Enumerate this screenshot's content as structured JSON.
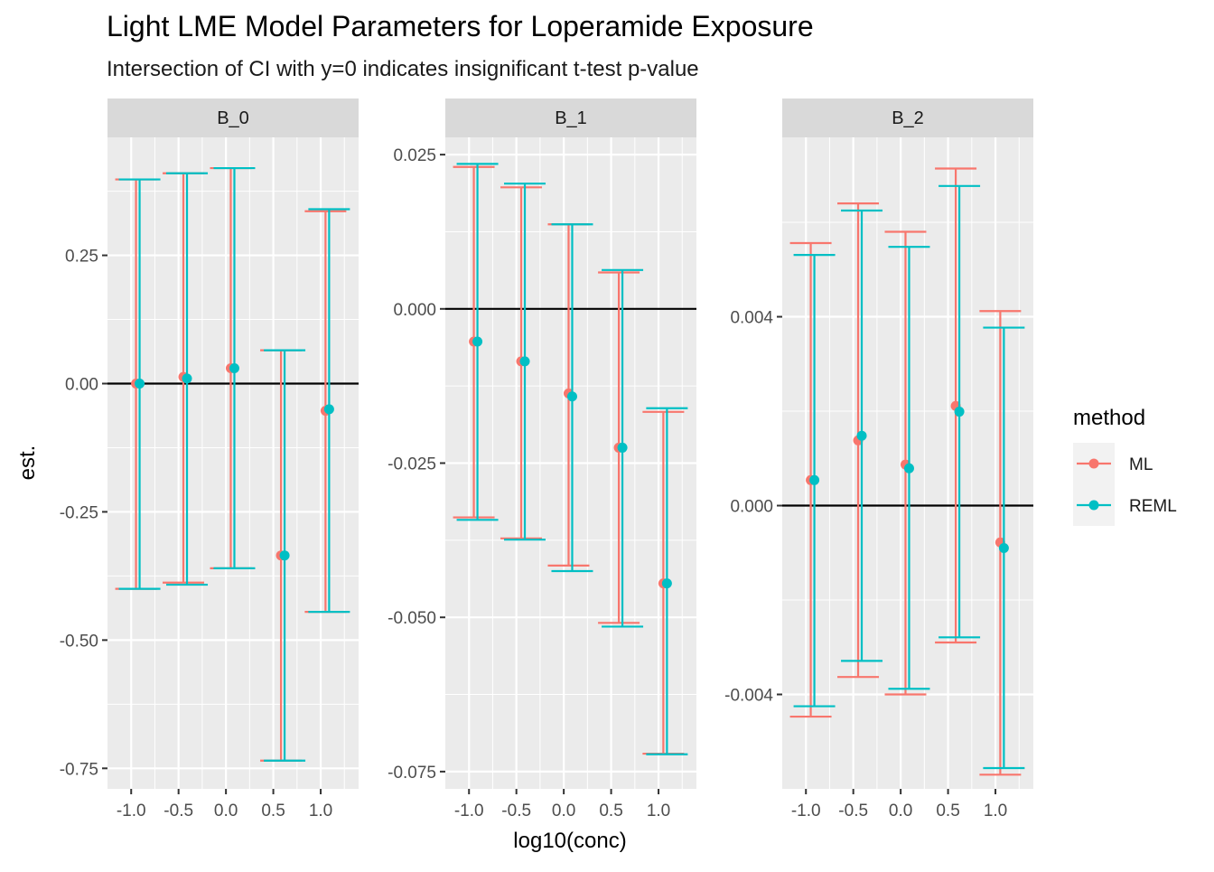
{
  "chart_data": {
    "type": "errorbar",
    "title": "Light LME Model Parameters for Loperamide Exposure",
    "subtitle": "Intersection of CI with y=0 indicates insignificant t-test p-value",
    "xlabel": "log10(conc)",
    "ylabel": "est.",
    "legend": {
      "title": "method",
      "position": "right",
      "entries": [
        {
          "label": "ML",
          "color": "#F8766D"
        },
        {
          "label": "REML",
          "color": "#00BFC4"
        }
      ]
    },
    "x_ticks": [
      "-1.0",
      "-0.5",
      "0.0",
      "0.5",
      "1.0"
    ],
    "xlim": [
      -1.25,
      1.4
    ],
    "x_values": [
      -0.93,
      -0.43,
      0.07,
      0.6,
      1.07
    ],
    "reference_line_y": 0,
    "grid": true,
    "panels": [
      {
        "name": "B_0",
        "ylim": [
          -0.79,
          0.48
        ],
        "y_ticks": [
          {
            "value": 0.25,
            "label": "0.25"
          },
          {
            "value": 0.0,
            "label": "0.00"
          },
          {
            "value": -0.25,
            "label": "-0.25"
          },
          {
            "value": -0.5,
            "label": "-0.50"
          },
          {
            "value": -0.75,
            "label": "-0.75"
          }
        ],
        "series": [
          {
            "name": "ML",
            "estimate": [
              0.0,
              0.013,
              0.03,
              -0.335,
              -0.053
            ],
            "lower": [
              -0.4,
              -0.388,
              -0.36,
              -0.735,
              -0.445
            ],
            "upper": [
              0.398,
              0.41,
              0.42,
              0.065,
              0.336
            ]
          },
          {
            "name": "REML",
            "estimate": [
              0.0,
              0.01,
              0.03,
              -0.335,
              -0.05
            ],
            "lower": [
              -0.4,
              -0.392,
              -0.36,
              -0.735,
              -0.445
            ],
            "upper": [
              0.398,
              0.41,
              0.42,
              0.065,
              0.34
            ]
          }
        ]
      },
      {
        "name": "B_1",
        "ylim": [
          -0.0778,
          0.0278
        ],
        "y_ticks": [
          {
            "value": 0.025,
            "label": "0.025"
          },
          {
            "value": 0.0,
            "label": "0.000"
          },
          {
            "value": -0.025,
            "label": "-0.025"
          },
          {
            "value": -0.05,
            "label": "-0.050"
          },
          {
            "value": -0.075,
            "label": "-0.075"
          }
        ],
        "series": [
          {
            "name": "ML",
            "estimate": [
              -0.0053,
              -0.0085,
              -0.0137,
              -0.0225,
              -0.0445
            ],
            "lower": [
              -0.0338,
              -0.0372,
              -0.0416,
              -0.0509,
              -0.0721
            ],
            "upper": [
              0.023,
              0.0197,
              0.0137,
              0.0059,
              -0.0167
            ]
          },
          {
            "name": "REML",
            "estimate": [
              -0.0053,
              -0.0085,
              -0.0142,
              -0.0225,
              -0.0445
            ],
            "lower": [
              -0.0342,
              -0.0374,
              -0.0425,
              -0.0515,
              -0.0722
            ],
            "upper": [
              0.0235,
              0.0203,
              0.0137,
              0.0063,
              -0.0161
            ]
          }
        ]
      },
      {
        "name": "B_2",
        "ylim": [
          -0.006,
          0.0078
        ],
        "y_ticks": [
          {
            "value": 0.004,
            "label": "0.004"
          },
          {
            "value": 0.0,
            "label": "0.000"
          },
          {
            "value": -0.004,
            "label": "-0.004"
          }
        ],
        "series": [
          {
            "name": "ML",
            "estimate": [
              0.00054,
              0.00138,
              0.00087,
              0.00211,
              -0.00078
            ],
            "lower": [
              -0.00447,
              -0.00363,
              -0.004,
              -0.0029,
              -0.0057
            ],
            "upper": [
              0.00556,
              0.0064,
              0.0058,
              0.00714,
              0.00412
            ]
          },
          {
            "name": "REML",
            "estimate": [
              0.00054,
              0.00148,
              0.00079,
              0.00199,
              -0.0009
            ],
            "lower": [
              -0.00425,
              -0.00329,
              -0.00388,
              -0.00279,
              -0.00556
            ],
            "upper": [
              0.00531,
              0.00625,
              0.00548,
              0.00677,
              0.00377
            ]
          }
        ]
      }
    ]
  }
}
